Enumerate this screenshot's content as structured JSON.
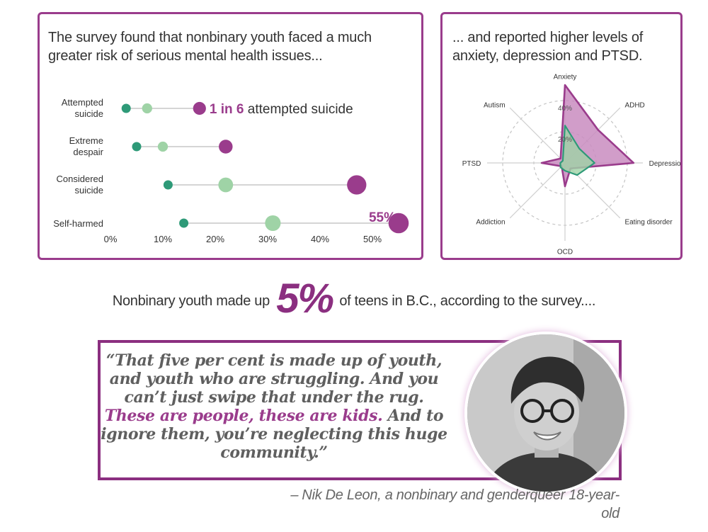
{
  "left_panel": {
    "heading": "The survey found that nonbinary youth faced a much greater risk of serious mental health issues..."
  },
  "right_panel": {
    "heading": "... and reported higher levels of anxiety, depression and PTSD."
  },
  "stat": {
    "prefix": "Nonbinary youth made up",
    "value": "5%",
    "suffix": "of teens in B.C., according to the survey...."
  },
  "quote": {
    "part1": "“That five per cent is made up of youth, and youth who are struggling. And you can’t just swipe that under the rug.",
    "highlight": "These are people, these are kids.",
    "part2": "And to ignore them, you’re neglecting this huge community.”",
    "attribution": "– Nik De Leon, a nonbinary and genderqueer 18-year-old"
  },
  "colors": {
    "purple": "#9a3c8c",
    "green_dark": "#2e9a78",
    "green_light": "#9fd3a6",
    "gray_line": "#d5d5d5"
  },
  "chart_data": [
    {
      "type": "scatter",
      "subtype": "dot-plot",
      "categories": [
        "Attempted\nsuicide",
        "Extreme\ndespair",
        "Considered\nsuicide",
        "Self-harmed"
      ],
      "x_ticks": [
        "0%",
        "10%",
        "20%",
        "30%",
        "40%",
        "50%"
      ],
      "xlim": [
        0,
        55
      ],
      "series": [
        {
          "values": [
            3,
            5,
            11,
            14
          ],
          "color": "#2e9a78",
          "size": [
            1,
            1,
            1,
            1
          ]
        },
        {
          "values": [
            7,
            10,
            22,
            31
          ],
          "color": "#9fd3a6",
          "size": [
            1.1,
            1.1,
            1.6,
            1.7
          ]
        },
        {
          "values": [
            17,
            22,
            47,
            55
          ],
          "color": "#9a3c8c",
          "size": [
            1.4,
            1.5,
            2.1,
            2.2
          ]
        }
      ],
      "annotations": [
        {
          "row": 0,
          "bold": "1 in 6",
          "text": "attempted suicide"
        },
        {
          "row": 3,
          "bold": "55%",
          "text": ""
        }
      ]
    },
    {
      "type": "radar",
      "axes": [
        "Anxiety",
        "ADHD",
        "Depression",
        "Eating disorder",
        "OCD",
        "Addiction",
        "PTSD",
        "Autism"
      ],
      "rings": [
        "20%",
        "40%"
      ],
      "rlim": [
        0,
        50
      ],
      "grid": true,
      "series": [
        {
          "values": [
            50,
            30,
            44,
            5,
            15,
            3,
            15,
            4
          ],
          "color": "#9a3c8c"
        },
        {
          "values": [
            24,
            13,
            19,
            11,
            5,
            4,
            3,
            2
          ],
          "color": "#2e9a78",
          "fill": "#9fd3a6"
        }
      ]
    }
  ]
}
